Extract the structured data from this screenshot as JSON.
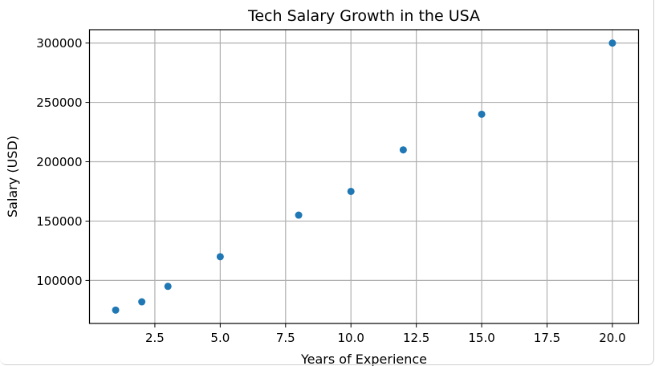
{
  "chart_data": {
    "type": "scatter",
    "title": "Tech Salary Growth in the USA",
    "xlabel": "Years of Experience",
    "ylabel": "Salary (USD)",
    "x": [
      1,
      2,
      3,
      5,
      8,
      10,
      12,
      15,
      20
    ],
    "y": [
      75000,
      82000,
      95000,
      120000,
      155000,
      175000,
      210000,
      240000,
      300000
    ],
    "xlim": [
      -0.0,
      21.0
    ],
    "ylim": [
      63750,
      311250
    ],
    "xticks": [
      2.5,
      5.0,
      7.5,
      10.0,
      12.5,
      15.0,
      17.5,
      20.0
    ],
    "xtick_labels": [
      "2.5",
      "5.0",
      "7.5",
      "10.0",
      "12.5",
      "15.0",
      "17.5",
      "20.0"
    ],
    "yticks": [
      100000,
      150000,
      200000,
      250000,
      300000
    ],
    "ytick_labels": [
      "100000",
      "150000",
      "200000",
      "250000",
      "300000"
    ],
    "grid": true,
    "marker_color": "#1f77b4"
  }
}
